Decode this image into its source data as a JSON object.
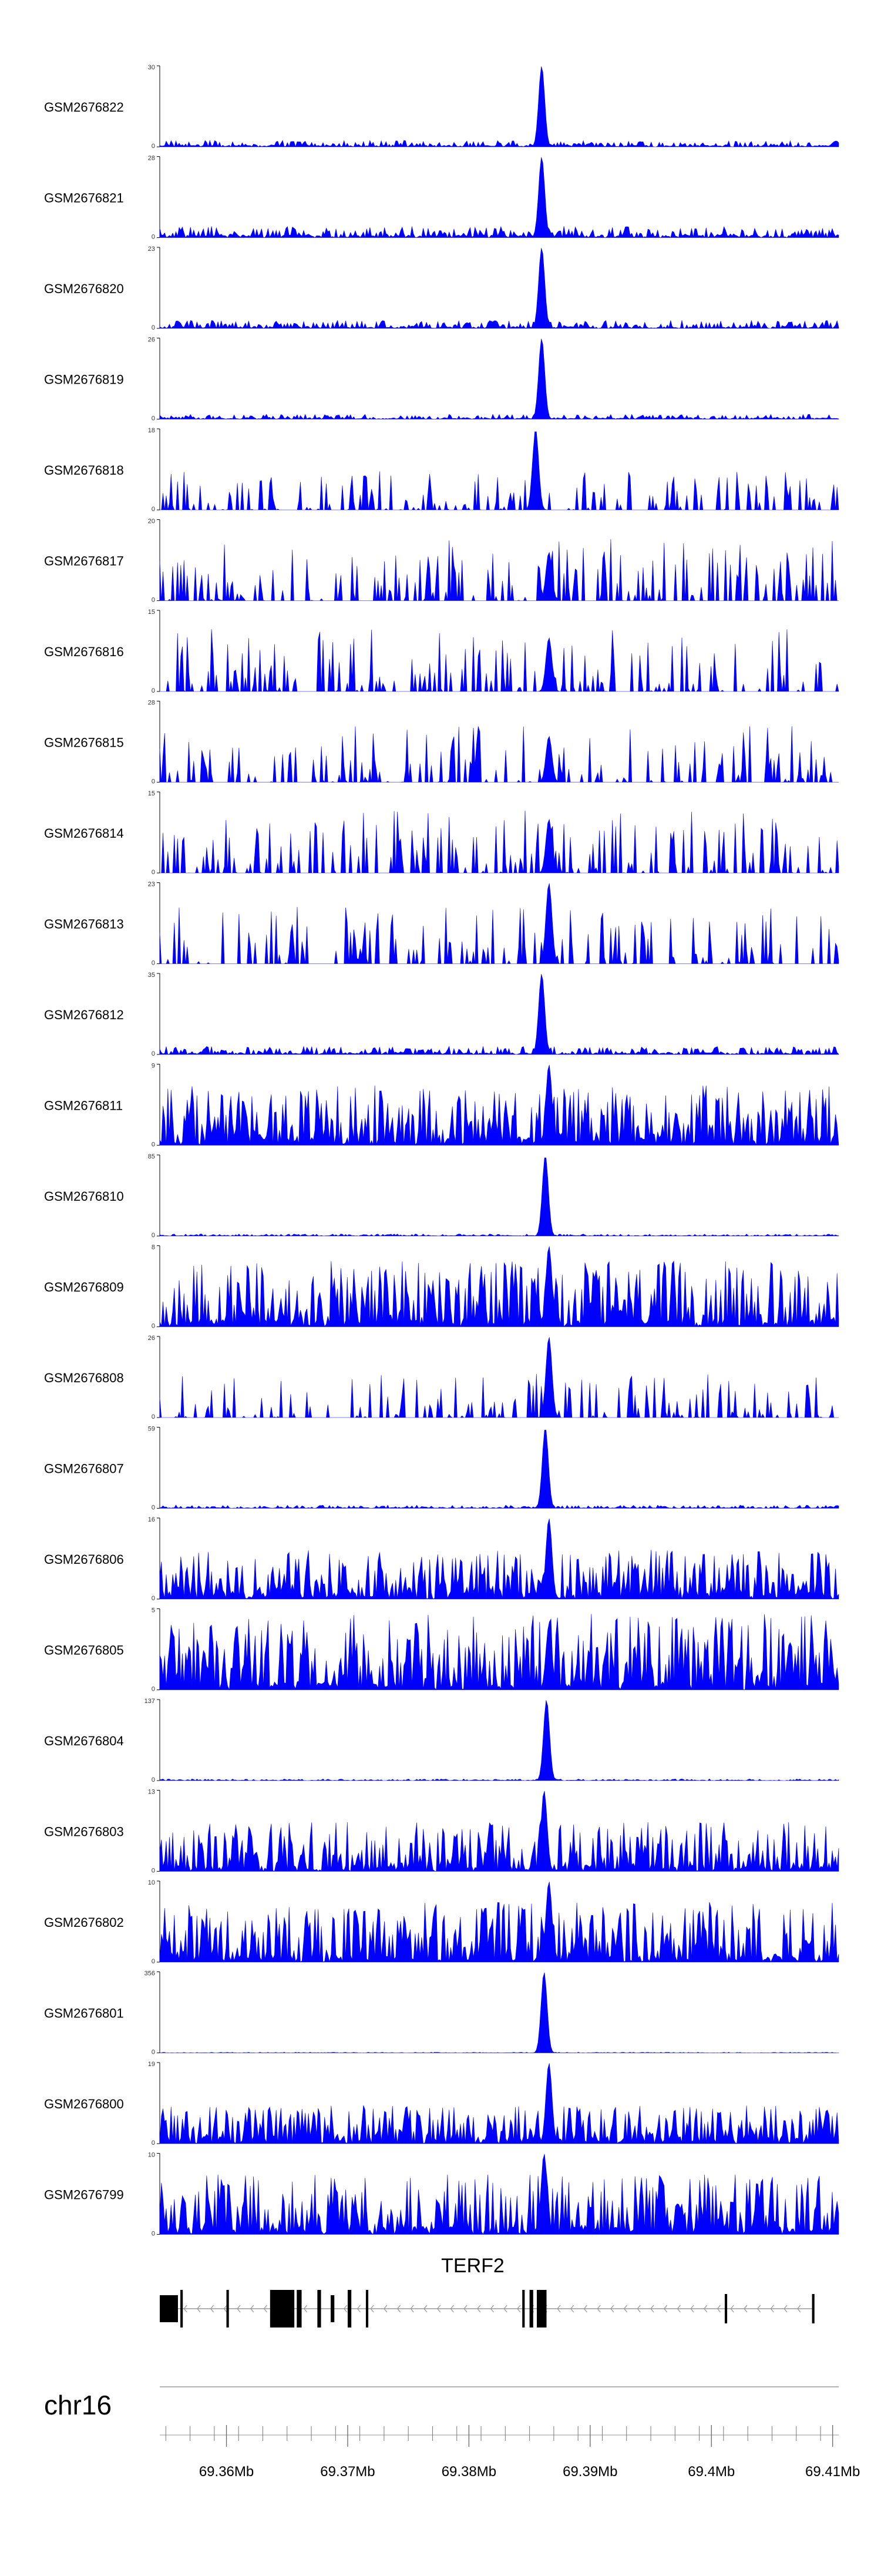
{
  "chart_data": {
    "type": "area",
    "color": "#0000ff",
    "x_axis": {
      "chromosome": "chr16",
      "range_mb": [
        69.3545,
        69.4105
      ],
      "ticks_mb": [
        69.36,
        69.37,
        69.38,
        69.39,
        69.4,
        69.41
      ],
      "tick_labels": [
        "69.36Mb",
        "69.37Mb",
        "69.38Mb",
        "69.39Mb",
        "69.4Mb",
        "69.41Mb"
      ]
    },
    "gene": {
      "name": "TERF2",
      "strand": "-",
      "start_mb": 69.3545,
      "end_mb": 69.4085
    },
    "tracks": [
      {
        "name": "GSM2676822",
        "ymax": 30,
        "peak_mb": 69.386,
        "peak": 30,
        "base": 0.08,
        "mode": "dense",
        "seed": 11
      },
      {
        "name": "GSM2676821",
        "ymax": 28,
        "peak_mb": 69.386,
        "peak": 28,
        "base": 0.14,
        "mode": "dense",
        "seed": 12
      },
      {
        "name": "GSM2676820",
        "ymax": 23,
        "peak_mb": 69.386,
        "peak": 23,
        "base": 0.1,
        "mode": "dense",
        "seed": 13
      },
      {
        "name": "GSM2676819",
        "ymax": 26,
        "peak_mb": 69.386,
        "peak": 26,
        "base": 0.06,
        "mode": "dense",
        "seed": 14
      },
      {
        "name": "GSM2676818",
        "ymax": 18,
        "peak_mb": 69.3855,
        "peak": 18,
        "base": 0.35,
        "mode": "sparse",
        "seed": 15
      },
      {
        "name": "GSM2676817",
        "ymax": 20,
        "peak_mb": 69.3866,
        "peak": 12,
        "base": 0.55,
        "mode": "sparse",
        "seed": 16
      },
      {
        "name": "GSM2676816",
        "ymax": 15,
        "peak_mb": 69.3866,
        "peak": 10,
        "base": 0.55,
        "mode": "sparse",
        "seed": 17
      },
      {
        "name": "GSM2676815",
        "ymax": 28,
        "peak_mb": 69.3866,
        "peak": 16,
        "base": 0.5,
        "mode": "sparse",
        "seed": 18
      },
      {
        "name": "GSM2676814",
        "ymax": 15,
        "peak_mb": 69.3866,
        "peak": 10,
        "base": 0.55,
        "mode": "sparse",
        "seed": 19
      },
      {
        "name": "GSM2676813",
        "ymax": 23,
        "peak_mb": 69.3866,
        "peak": 23,
        "base": 0.5,
        "mode": "sparse",
        "seed": 20
      },
      {
        "name": "GSM2676812",
        "ymax": 35,
        "peak_mb": 69.386,
        "peak": 35,
        "base": 0.1,
        "mode": "dense",
        "seed": 21
      },
      {
        "name": "GSM2676811",
        "ymax": 9,
        "peak_mb": 69.3866,
        "peak": 9,
        "base": 0.55,
        "mode": "busy",
        "seed": 22
      },
      {
        "name": "GSM2676810",
        "ymax": 85,
        "peak_mb": 69.3863,
        "peak": 85,
        "base": 0.025,
        "mode": "dense",
        "seed": 23
      },
      {
        "name": "GSM2676809",
        "ymax": 8,
        "peak_mb": 69.3866,
        "peak": 8,
        "base": 0.6,
        "mode": "busy",
        "seed": 24
      },
      {
        "name": "GSM2676808",
        "ymax": 26,
        "peak_mb": 69.3866,
        "peak": 26,
        "base": 0.4,
        "mode": "sparse",
        "seed": 25
      },
      {
        "name": "GSM2676807",
        "ymax": 59,
        "peak_mb": 69.3863,
        "peak": 59,
        "base": 0.04,
        "mode": "dense",
        "seed": 26
      },
      {
        "name": "GSM2676806",
        "ymax": 16,
        "peak_mb": 69.3866,
        "peak": 16,
        "base": 0.45,
        "mode": "busy",
        "seed": 27
      },
      {
        "name": "GSM2676805",
        "ymax": 5,
        "peak_mb": 69.3866,
        "peak": 4,
        "base": 0.7,
        "mode": "busy",
        "seed": 28
      },
      {
        "name": "GSM2676804",
        "ymax": 137,
        "peak_mb": 69.3864,
        "peak": 137,
        "base": 0.02,
        "mode": "dense",
        "seed": 29
      },
      {
        "name": "GSM2676803",
        "ymax": 13,
        "peak_mb": 69.3862,
        "peak": 13,
        "base": 0.45,
        "mode": "busy",
        "seed": 30
      },
      {
        "name": "GSM2676802",
        "ymax": 10,
        "peak_mb": 69.3866,
        "peak": 10,
        "base": 0.55,
        "mode": "busy",
        "seed": 31
      },
      {
        "name": "GSM2676801",
        "ymax": 356,
        "peak_mb": 69.3862,
        "peak": 356,
        "base": 0.008,
        "mode": "dense",
        "seed": 32
      },
      {
        "name": "GSM2676800",
        "ymax": 19,
        "peak_mb": 69.3866,
        "peak": 19,
        "base": 0.35,
        "mode": "busy",
        "seed": 33
      },
      {
        "name": "GSM2676799",
        "ymax": 10,
        "peak_mb": 69.3862,
        "peak": 10,
        "base": 0.55,
        "mode": "busy",
        "seed": 34
      }
    ]
  }
}
